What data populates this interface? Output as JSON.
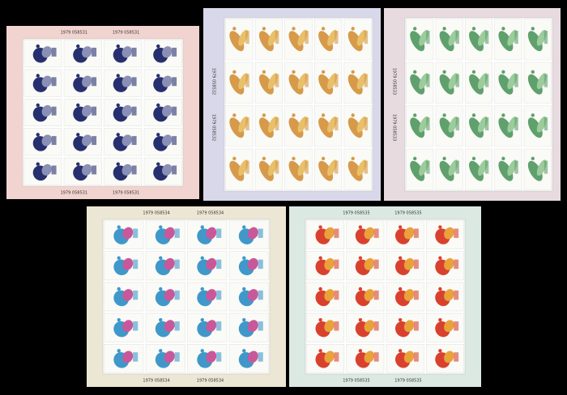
{
  "sheets": [
    {
      "labels": [
        "1979 058531",
        "1979 058531",
        "1979 058531",
        "1979 058531"
      ]
    },
    {
      "labels": [
        "1979 058532",
        "1979 058532"
      ]
    },
    {
      "labels": [
        "1979 058533",
        "1979 058533"
      ]
    },
    {
      "labels": [
        "1979 058534",
        "1979 058534",
        "1979 058534",
        "1979 058534"
      ]
    },
    {
      "labels": [
        "1979 058535",
        "1979 058535",
        "1979 058535",
        "1979 058535"
      ]
    }
  ]
}
